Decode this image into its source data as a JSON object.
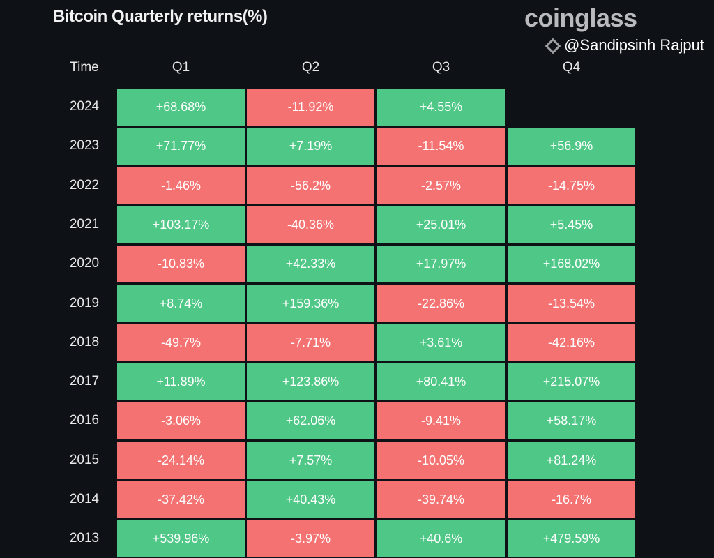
{
  "chart_data": {
    "type": "table",
    "title": "Bitcoin Quarterly returns(%)",
    "columns": [
      "Time",
      "Q1",
      "Q2",
      "Q3",
      "Q4"
    ],
    "rows": [
      {
        "year": "2024",
        "values": [
          "+68.68%",
          "-11.92%",
          "+4.55%",
          null
        ]
      },
      {
        "year": "2023",
        "values": [
          "+71.77%",
          "+7.19%",
          "-11.54%",
          "+56.9%"
        ]
      },
      {
        "year": "2022",
        "values": [
          "-1.46%",
          "-56.2%",
          "-2.57%",
          "-14.75%"
        ]
      },
      {
        "year": "2021",
        "values": [
          "+103.17%",
          "-40.36%",
          "+25.01%",
          "+5.45%"
        ]
      },
      {
        "year": "2020",
        "values": [
          "-10.83%",
          "+42.33%",
          "+17.97%",
          "+168.02%"
        ]
      },
      {
        "year": "2019",
        "values": [
          "+8.74%",
          "+159.36%",
          "-22.86%",
          "-13.54%"
        ]
      },
      {
        "year": "2018",
        "values": [
          "-49.7%",
          "-7.71%",
          "+3.61%",
          "-42.16%"
        ]
      },
      {
        "year": "2017",
        "values": [
          "+11.89%",
          "+123.86%",
          "+80.41%",
          "+215.07%"
        ]
      },
      {
        "year": "2016",
        "values": [
          "-3.06%",
          "+62.06%",
          "-9.41%",
          "+58.17%"
        ]
      },
      {
        "year": "2015",
        "values": [
          "-24.14%",
          "+7.57%",
          "-10.05%",
          "+81.24%"
        ]
      },
      {
        "year": "2014",
        "values": [
          "-37.42%",
          "+40.43%",
          "-39.74%",
          "-16.7%"
        ]
      },
      {
        "year": "2013",
        "values": [
          "+539.96%",
          "-3.97%",
          "+40.6%",
          "+479.59%"
        ]
      }
    ],
    "colors": {
      "positive": "#4fc786",
      "negative": "#f47272",
      "background": "#0e1116"
    }
  },
  "brand": "coinglass",
  "watermark": "@Sandipsinh Rajput"
}
